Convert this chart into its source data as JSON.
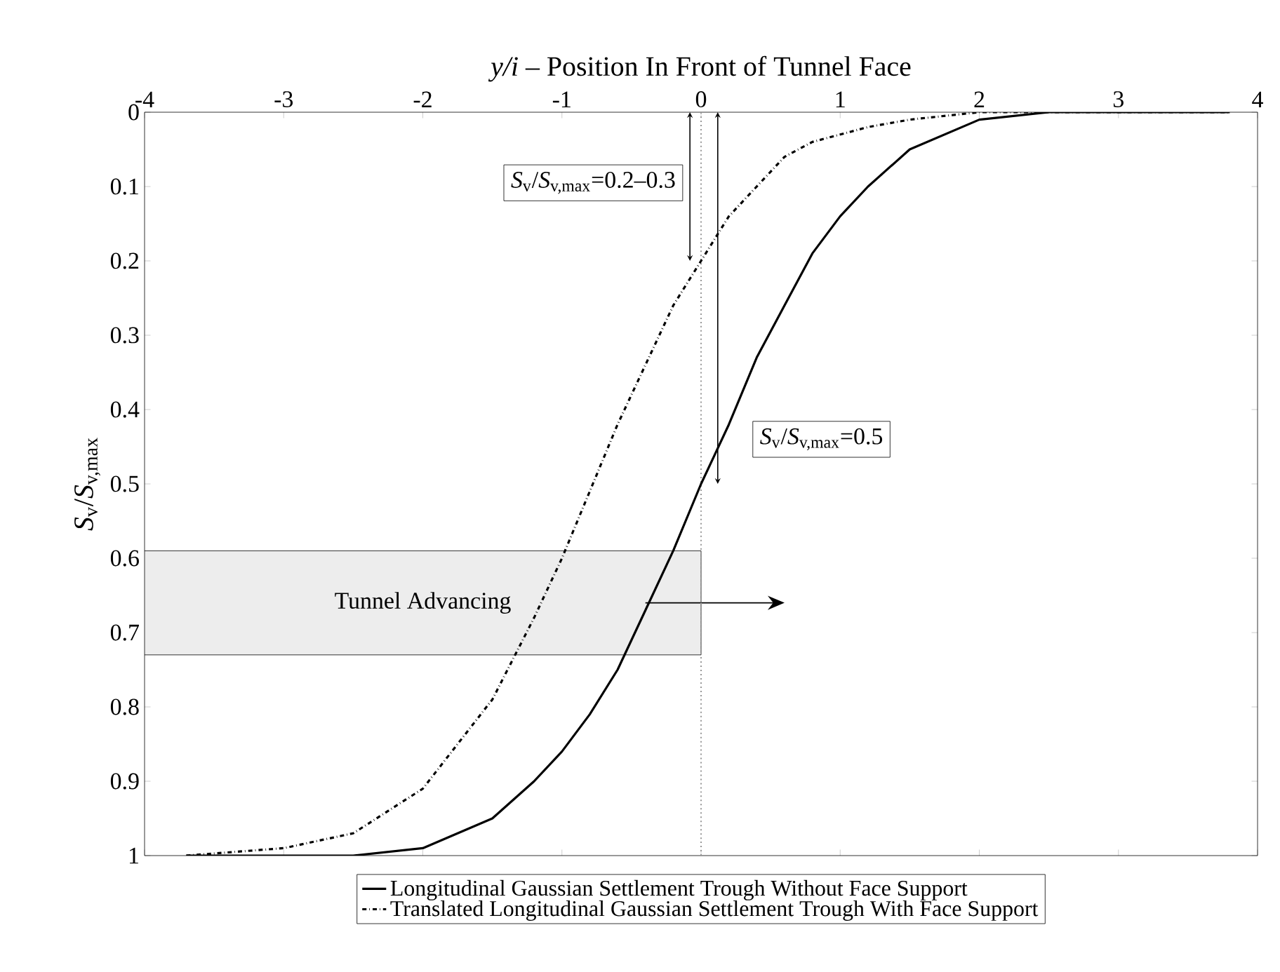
{
  "chart_data": {
    "type": "line",
    "xlabel": "*y/i* – Position In Front of Tunnel Face",
    "ylabel": "*S*$_{v}$/*S*$_{v,max}$",
    "xlim": [
      -4,
      4
    ],
    "xticks": [
      -4,
      -3,
      -2,
      -1,
      0,
      1,
      2,
      3,
      4
    ],
    "ylim": [
      1,
      0
    ],
    "yticks": [
      0,
      0.1,
      0.2,
      0.3,
      0.4,
      0.5,
      0.6,
      0.7,
      0.8,
      0.9,
      1
    ],
    "legend": "bottom",
    "series": [
      {
        "name": "Longitudinal Gaussian Settlement Trough Without Face Support",
        "color": "#000000",
        "line_style": "solid",
        "x": [
          -3.7,
          -3,
          -2.5,
          -2,
          -1.5,
          -1.2,
          -1,
          -0.8,
          -0.6,
          -0.4,
          -0.2,
          0,
          0.2,
          0.4,
          0.6,
          0.8,
          1,
          1.2,
          1.5,
          2,
          2.5,
          3,
          3.5,
          3.8
        ],
        "values": [
          1.0,
          1.0,
          1.0,
          0.99,
          0.95,
          0.9,
          0.86,
          0.81,
          0.75,
          0.67,
          0.59,
          0.5,
          0.42,
          0.33,
          0.26,
          0.19,
          0.14,
          0.1,
          0.05,
          0.01,
          0,
          0,
          0,
          0
        ]
      },
      {
        "name": "Translated Longitudinal Gaussian Settlement Trough With Face Support",
        "color": "#000000",
        "line_style": "dashdot",
        "x": [
          -3.7,
          -3,
          -2.5,
          -2,
          -1.5,
          -1.2,
          -1,
          -0.8,
          -0.6,
          -0.4,
          -0.2,
          0,
          0.2,
          0.4,
          0.6,
          0.8,
          1,
          1.2,
          1.5,
          2,
          2.5,
          3,
          3.5,
          3.8
        ],
        "values": [
          1.0,
          0.99,
          0.97,
          0.91,
          0.79,
          0.68,
          0.6,
          0.51,
          0.42,
          0.34,
          0.26,
          0.2,
          0.14,
          0.1,
          0.06,
          0.04,
          0.03,
          0.02,
          0.01,
          0,
          0,
          0,
          0,
          0
        ]
      }
    ],
    "ref_lines": [
      {
        "axis": "x",
        "value": 0,
        "color": "#999999",
        "line_style": "dotted"
      }
    ],
    "annotations": [
      "*S*$_{v}$/*S*$_{v,max}$=0.2–0.3",
      "*S*$_{v}$/*S*$_{v,max}$=0.5"
    ],
    "bands": [
      {
        "axis": "y",
        "from": 0.59,
        "to": 0.73,
        "label": "Tunnel Advancing",
        "color": "#ededed"
      }
    ]
  }
}
